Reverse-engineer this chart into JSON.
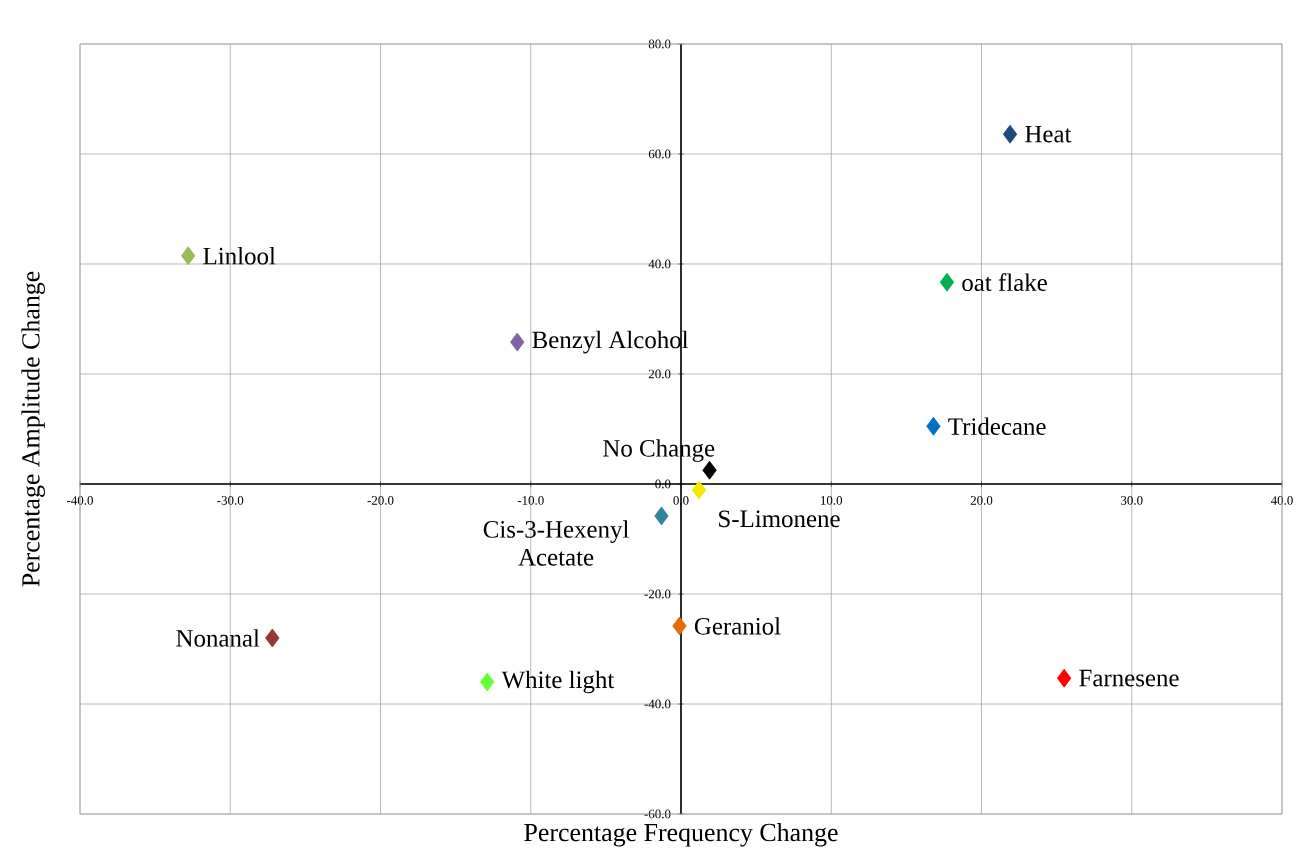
{
  "chart_data": {
    "type": "scatter",
    "xlabel": "Percentage Frequency Change",
    "ylabel": "Percentage Amplitude Change",
    "marker": "diamond",
    "grid": true,
    "xlim": [
      -40,
      40
    ],
    "ylim": [
      -60,
      80
    ],
    "xticks": [
      {
        "value": -40,
        "label": "-40.0"
      },
      {
        "value": -30,
        "label": "-30.0"
      },
      {
        "value": -20,
        "label": "-20.0"
      },
      {
        "value": -10,
        "label": "-10.0"
      },
      {
        "value": 0,
        "label": "0.0"
      },
      {
        "value": 10,
        "label": "10.0"
      },
      {
        "value": 20,
        "label": "20.0"
      },
      {
        "value": 30,
        "label": "30.0"
      },
      {
        "value": 40,
        "label": "40.0"
      }
    ],
    "yticks": [
      {
        "value": -60,
        "label": "-60.0"
      },
      {
        "value": -40,
        "label": "-40.0"
      },
      {
        "value": -20,
        "label": "-20.0"
      },
      {
        "value": 0,
        "label": "0.0"
      },
      {
        "value": 20,
        "label": "20.0"
      },
      {
        "value": 40,
        "label": "40.0"
      },
      {
        "value": 60,
        "label": "60.0"
      },
      {
        "value": 80,
        "label": "80.0"
      }
    ],
    "series": [
      {
        "name": "Heat",
        "color": "#1f497d",
        "x": [
          21.9
        ],
        "values": [
          63.6
        ]
      },
      {
        "name": "oat flake",
        "color": "#00b050",
        "x": [
          17.7
        ],
        "values": [
          36.7
        ]
      },
      {
        "name": "Tridecane",
        "color": "#0070c0",
        "x": [
          16.8
        ],
        "values": [
          10.5
        ]
      },
      {
        "name": "No Change",
        "color": "#000000",
        "x": [
          1.9
        ],
        "values": [
          2.5
        ]
      },
      {
        "name": "S-Limonene",
        "color": "#f5e800",
        "x": [
          1.2
        ],
        "values": [
          -1.1
        ]
      },
      {
        "name": "Cis-3-Hexenyl Acetate",
        "color": "#31859c",
        "x": [
          -1.3
        ],
        "values": [
          -5.8
        ]
      },
      {
        "name": "Geraniol",
        "color": "#e36c09",
        "x": [
          -0.1
        ],
        "values": [
          -25.8
        ]
      },
      {
        "name": "Farnesene",
        "color": "#ff0000",
        "x": [
          25.5
        ],
        "values": [
          -35.3
        ]
      },
      {
        "name": "White light",
        "color": "#66ff33",
        "x": [
          -12.9
        ],
        "values": [
          -36.0
        ]
      },
      {
        "name": "Nonanal",
        "color": "#953735",
        "x": [
          -27.2
        ],
        "values": [
          -28.0
        ]
      },
      {
        "name": "Benzyl Alcohol",
        "color": "#8064a2",
        "x": [
          -10.9
        ],
        "values": [
          25.8
        ]
      },
      {
        "name": "Linlool",
        "color": "#9bbb59",
        "x": [
          -32.8
        ],
        "values": [
          41.5
        ]
      }
    ]
  }
}
